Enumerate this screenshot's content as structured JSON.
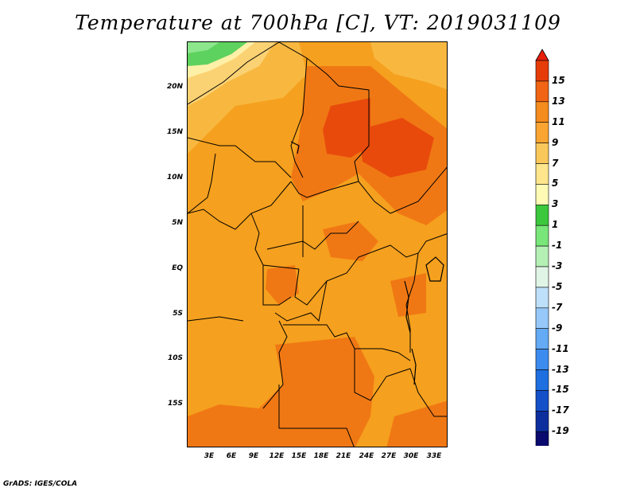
{
  "title": "Temperature at 700hPa [C], VT: 2019031109",
  "footer": "GrADS: IGES/COLA",
  "map": {
    "lat_labels": [
      "20N",
      "15N",
      "10N",
      "5N",
      "EQ",
      "5S",
      "10S",
      "15S"
    ],
    "lon_labels": [
      "3E",
      "6E",
      "9E",
      "12E",
      "15E",
      "18E",
      "21E",
      "24E",
      "27E",
      "30E",
      "33E"
    ]
  },
  "colorbar": {
    "labels": [
      "15",
      "13",
      "11",
      "9",
      "7",
      "5",
      "3",
      "1",
      "-1",
      "-3",
      "-5",
      "-7",
      "-9",
      "-11",
      "-13",
      "-15",
      "-17",
      "-19"
    ],
    "colors": [
      "#d7d0ee",
      "#0a0a6e",
      "#0d2f9e",
      "#1450c8",
      "#1e6fe0",
      "#3c8cf0",
      "#64aaf5",
      "#96c8fa",
      "#bee0fa",
      "#e1f5e6",
      "#b4f0b4",
      "#78e678",
      "#3cc83c",
      "#fffab4",
      "#ffe68c",
      "#fac85a",
      "#faa532",
      "#f58c1e",
      "#f06414",
      "#e63c0a",
      "#e61e0a"
    ]
  },
  "colors": {
    "t9_11": "#f5a01e",
    "t11_13": "#f07814",
    "t13_15": "#e84a0c",
    "t7_9": "#f8b840",
    "t5_7": "#fbd273",
    "t3_5": "#fff0a8",
    "t1_3": "#5ed25e",
    "tm1_1": "#8ce68c",
    "borders": "#000000"
  }
}
